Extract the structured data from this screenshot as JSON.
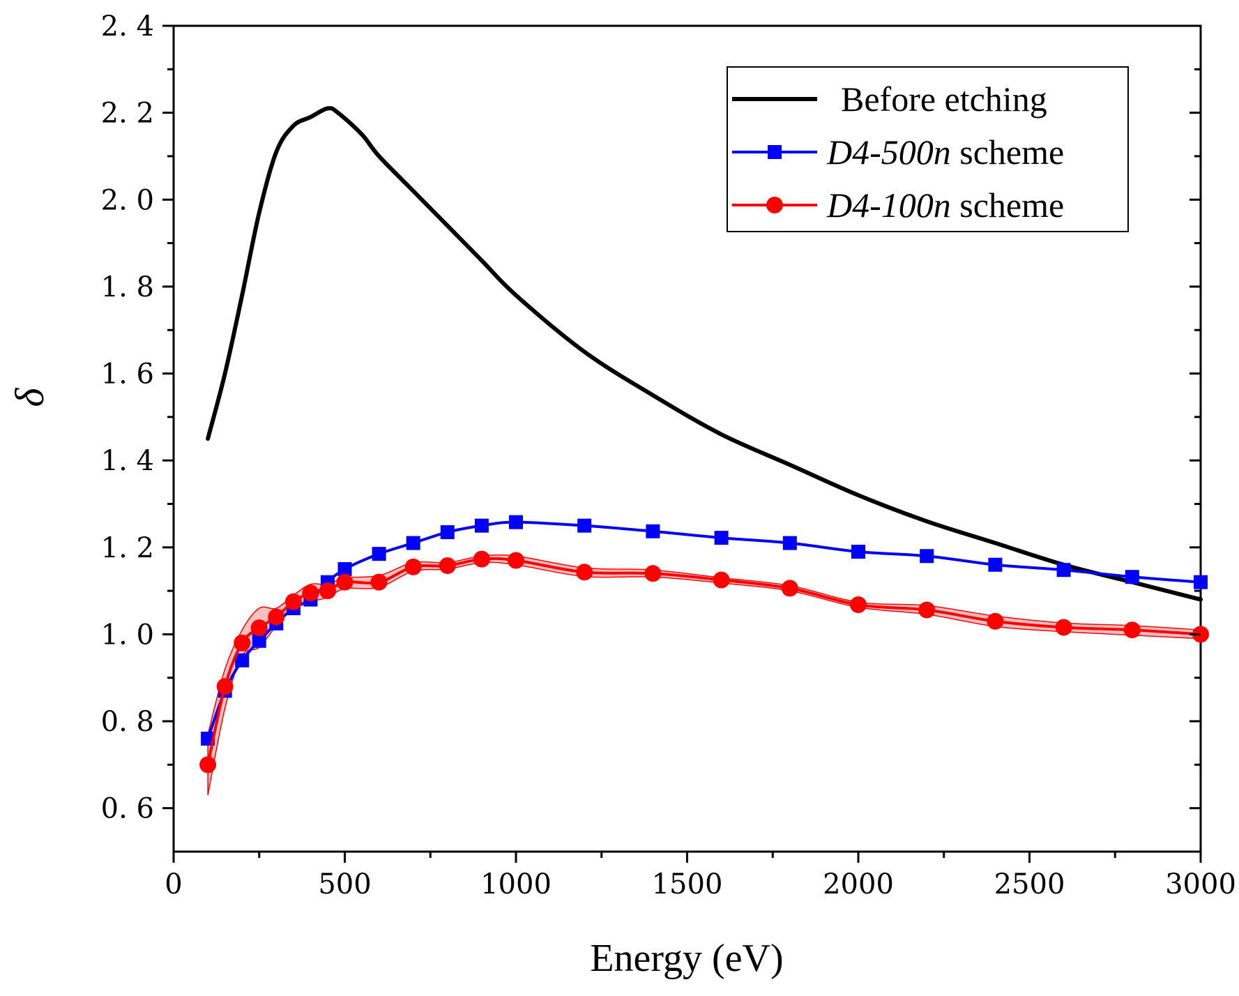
{
  "chart_data": {
    "type": "line",
    "xlabel": "Energy (eV)",
    "ylabel": "δ",
    "xlim": [
      0,
      3000
    ],
    "ylim": [
      0.5,
      2.4
    ],
    "x_ticks": [
      0,
      500,
      1000,
      1500,
      2000,
      2500,
      3000
    ],
    "x_tick_labels": [
      "0",
      "500",
      "1000",
      "1500",
      "2000",
      "2500",
      "3000"
    ],
    "y_ticks": [
      0.6,
      0.8,
      1.0,
      1.2,
      1.4,
      1.6,
      1.8,
      2.0,
      2.2,
      2.4
    ],
    "y_tick_labels": [
      "0. 6",
      "0. 8",
      "1. 0",
      "1. 2",
      "1. 4",
      "1. 6",
      "1. 8",
      "2. 0",
      "2. 2",
      "2. 4"
    ],
    "grid": false,
    "legend_position": "top-right",
    "series": [
      {
        "name": "Before etching",
        "legend_italic": "",
        "legend_regular": "Before etching",
        "color": "#000000",
        "marker": "none",
        "x": [
          100,
          150,
          200,
          250,
          300,
          350,
          400,
          450,
          480,
          550,
          600,
          700,
          800,
          900,
          1000,
          1200,
          1400,
          1600,
          1800,
          2000,
          2200,
          2400,
          2600,
          2800,
          3000
        ],
        "y": [
          1.45,
          1.6,
          1.78,
          1.97,
          2.11,
          2.17,
          2.19,
          2.21,
          2.2,
          2.15,
          2.1,
          2.02,
          1.94,
          1.86,
          1.78,
          1.65,
          1.55,
          1.46,
          1.39,
          1.32,
          1.26,
          1.21,
          1.16,
          1.12,
          1.08
        ]
      },
      {
        "name": "D4-500n scheme",
        "legend_italic": "D4-500n",
        "legend_regular": " scheme",
        "color": "#0000ff",
        "marker": "square",
        "x": [
          100,
          150,
          200,
          250,
          300,
          350,
          400,
          450,
          500,
          600,
          700,
          800,
          900,
          1000,
          1200,
          1400,
          1600,
          1800,
          2000,
          2200,
          2400,
          2600,
          2800,
          3000
        ],
        "y": [
          0.76,
          0.87,
          0.94,
          0.985,
          1.025,
          1.06,
          1.08,
          1.12,
          1.15,
          1.185,
          1.21,
          1.235,
          1.25,
          1.258,
          1.25,
          1.237,
          1.222,
          1.21,
          1.19,
          1.18,
          1.16,
          1.148,
          1.132,
          1.12
        ]
      },
      {
        "name": "D4-100n scheme",
        "legend_italic": "D4-100n",
        "legend_regular": " scheme",
        "color": "#ff0000",
        "marker": "circle",
        "x": [
          100,
          150,
          200,
          250,
          300,
          350,
          400,
          450,
          500,
          600,
          700,
          800,
          900,
          1000,
          1200,
          1400,
          1600,
          1800,
          2000,
          2200,
          2400,
          2600,
          2800,
          3000
        ],
        "y": [
          0.7,
          0.88,
          0.98,
          1.015,
          1.04,
          1.075,
          1.095,
          1.1,
          1.12,
          1.12,
          1.155,
          1.158,
          1.173,
          1.17,
          1.143,
          1.14,
          1.125,
          1.106,
          1.068,
          1.056,
          1.03,
          1.016,
          1.01,
          1.0
        ],
        "band_upper": [
          0.77,
          0.92,
          1.01,
          1.06,
          1.06,
          1.09,
          1.115,
          1.115,
          1.13,
          1.135,
          1.165,
          1.165,
          1.18,
          1.18,
          1.153,
          1.148,
          1.13,
          1.112,
          1.074,
          1.066,
          1.042,
          1.026,
          1.02,
          1.01
        ],
        "band_lower": [
          0.63,
          0.83,
          0.95,
          0.97,
          1.02,
          1.06,
          1.075,
          1.085,
          1.105,
          1.108,
          1.145,
          1.15,
          1.165,
          1.16,
          1.133,
          1.132,
          1.118,
          1.1,
          1.062,
          1.046,
          1.018,
          1.006,
          0.998,
          0.99
        ]
      }
    ]
  }
}
